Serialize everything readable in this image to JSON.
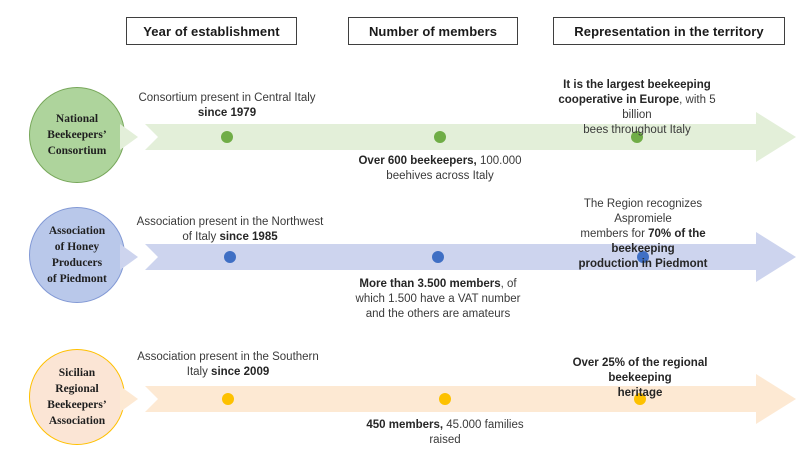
{
  "headers": [
    {
      "id": "year",
      "label": "Year of establishment"
    },
    {
      "id": "members",
      "label": "Number of members"
    },
    {
      "id": "territory",
      "label": "Representation in the territory"
    }
  ],
  "rows": [
    {
      "name": "national-beekeepers-consortium",
      "circle_label_lines": [
        "National",
        "Beekeepers’",
        "Consortium"
      ],
      "colors": {
        "circle_fill": "#aed49c",
        "circle_border": "#77a75a",
        "band": "#e3efd9",
        "dot": "#70ad47"
      },
      "annotations": [
        {
          "column": "year",
          "placement": "above",
          "lines": [
            [
              {
                "t": "Consortium present in Central Italy",
                "b": false
              }
            ],
            [
              {
                "t": "since 1979",
                "b": true
              }
            ]
          ]
        },
        {
          "column": "members",
          "placement": "below",
          "lines": [
            [
              {
                "t": "Over 600 beekeepers,",
                "b": true
              },
              {
                "t": " 100.000",
                "b": false
              }
            ],
            [
              {
                "t": "beehives across Italy",
                "b": false
              }
            ]
          ]
        },
        {
          "column": "territory",
          "placement": "above",
          "lines": [
            [
              {
                "t": "It is the largest beekeeping",
                "b": true
              }
            ],
            [
              {
                "t": "cooperative in Europe",
                "b": true
              },
              {
                "t": ", with 5 billion",
                "b": false
              }
            ],
            [
              {
                "t": "bees throughout Italy",
                "b": false
              }
            ]
          ]
        }
      ]
    },
    {
      "name": "association-of-honey-producers-of-piedmont",
      "circle_label_lines": [
        "Association",
        "of Honey",
        "Producers",
        "of Piedmont"
      ],
      "colors": {
        "circle_fill": "#b9c8ea",
        "circle_border": "#8299d5",
        "band": "#cdd4ee",
        "dot": "#3f6fc4"
      },
      "annotations": [
        {
          "column": "year",
          "placement": "above",
          "lines": [
            [
              {
                "t": "Association present in the Northwest",
                "b": false
              }
            ],
            [
              {
                "t": "of Italy ",
                "b": false
              },
              {
                "t": "since 1985",
                "b": true
              }
            ]
          ]
        },
        {
          "column": "members",
          "placement": "below",
          "lines": [
            [
              {
                "t": "More than 3.500 members",
                "b": true
              },
              {
                "t": ", of",
                "b": false
              }
            ],
            [
              {
                "t": "which 1.500 have a VAT number",
                "b": false
              }
            ],
            [
              {
                "t": "and the others are amateurs",
                "b": false
              }
            ]
          ]
        },
        {
          "column": "territory",
          "placement": "above",
          "lines": [
            [
              {
                "t": "The Region recognizes Aspromiele",
                "b": false
              }
            ],
            [
              {
                "t": "members for ",
                "b": false
              },
              {
                "t": "70% of the beekeeping",
                "b": true
              }
            ],
            [
              {
                "t": "production in Piedmont",
                "b": true
              }
            ]
          ]
        }
      ]
    },
    {
      "name": "sicilian-regional-beekeepers-association",
      "circle_label_lines": [
        "Sicilian",
        "Regional",
        "Beekeepers’",
        "Association"
      ],
      "colors": {
        "circle_fill": "#fbe5d5",
        "circle_border": "#ffc000",
        "band": "#fde9d3",
        "dot": "#fdc100"
      },
      "annotations": [
        {
          "column": "year",
          "placement": "above",
          "lines": [
            [
              {
                "t": "Association present in the Southern",
                "b": false
              }
            ],
            [
              {
                "t": "Italy ",
                "b": false
              },
              {
                "t": "since 2009",
                "b": true
              }
            ]
          ]
        },
        {
          "column": "members",
          "placement": "below",
          "lines": [
            [
              {
                "t": "450 members,",
                "b": true
              },
              {
                "t": " 45.000 families",
                "b": false
              }
            ],
            [
              {
                "t": "raised",
                "b": false
              }
            ]
          ]
        },
        {
          "column": "territory",
          "placement": "above",
          "lines": [
            [
              {
                "t": "Over 25% of the regional beekeeping",
                "b": true
              }
            ],
            [
              {
                "t": "heritage",
                "b": true
              }
            ]
          ]
        }
      ]
    }
  ]
}
